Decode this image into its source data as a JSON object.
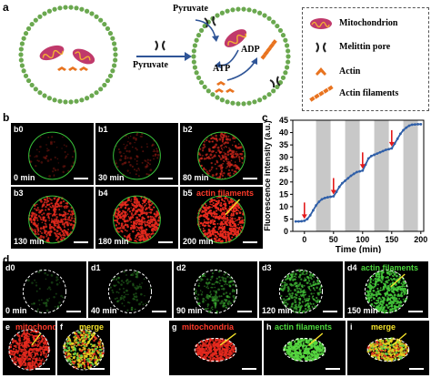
{
  "panel_a": {
    "letter": "a",
    "labels": {
      "pyruvate_top": "Pyruvate",
      "pyruvate_arrow": "Pyruvate",
      "adp": "ADP",
      "atp": "ATP"
    },
    "legend": [
      {
        "icon": "mitochondrion-icon",
        "label": "Mitochondrion"
      },
      {
        "icon": "melittin-pore-icon",
        "label": "Melittin pore"
      },
      {
        "icon": "actin-icon",
        "label": "Actin"
      },
      {
        "icon": "actin-filament-icon",
        "label": "Actin filaments"
      }
    ],
    "colors": {
      "membrane": "#6aa84f",
      "mitochondrion": "#c0396b",
      "actin": "#e8731f",
      "arrow": "#2f5597"
    }
  },
  "panel_b": {
    "letter": "b",
    "tiles": [
      {
        "label": "b0",
        "time": "0 min",
        "intensity": 0.04
      },
      {
        "label": "b1",
        "time": "30 min",
        "intensity": 0.12
      },
      {
        "label": "b2",
        "time": "80 min",
        "intensity": 0.5
      },
      {
        "label": "b3",
        "time": "130 min",
        "intensity": 0.75
      },
      {
        "label": "b4",
        "time": "180 min",
        "intensity": 0.88
      },
      {
        "label": "b5",
        "time": "200 min",
        "intensity": 1.0,
        "annotation": "actin filaments"
      }
    ]
  },
  "panel_c": {
    "letter": "c",
    "chart_data": {
      "type": "line",
      "xlabel": "Time (min)",
      "ylabel": "Fluorescence intensity (a.u.)",
      "xlim": [
        -20,
        205
      ],
      "ylim": [
        0,
        45
      ],
      "xticks": [
        0,
        50,
        100,
        150,
        200
      ],
      "yticks": [
        0,
        5,
        10,
        15,
        20,
        25,
        30,
        35,
        40,
        45
      ],
      "shaded_intervals": [
        [
          20,
          45
        ],
        [
          70,
          95
        ],
        [
          120,
          145
        ],
        [
          170,
          195
        ]
      ],
      "arrows_at": [
        0,
        50,
        100,
        150
      ],
      "series": [
        {
          "x": [
            -15,
            -10,
            -5,
            0,
            5,
            10,
            15,
            20,
            25,
            30,
            35,
            40,
            45,
            50,
            55,
            60,
            65,
            70,
            75,
            80,
            85,
            90,
            95,
            100,
            105,
            110,
            115,
            120,
            125,
            130,
            135,
            140,
            145,
            150,
            155,
            160,
            165,
            170,
            175,
            180,
            185,
            190,
            195,
            200
          ],
          "y": [
            4,
            4,
            4.1,
            4.3,
            5,
            6.5,
            8.5,
            10.5,
            12,
            13,
            13.5,
            13.8,
            14,
            14.2,
            16,
            18,
            19.5,
            20.5,
            21.5,
            22.5,
            23.3,
            24,
            24.3,
            24.6,
            27,
            29.5,
            30.5,
            31,
            31.5,
            32,
            32.5,
            33,
            33.3,
            33.6,
            35.5,
            37.5,
            39.5,
            41,
            42,
            42.8,
            43.2,
            43.3,
            43.4,
            43.4
          ]
        }
      ],
      "colors": {
        "line": "#2f5fa8",
        "shade": "#c8c8c8",
        "arrow": "#e31a1c"
      }
    }
  },
  "panel_d": {
    "letter": "d",
    "tiles": [
      {
        "label": "d0",
        "time": "0 min",
        "intensity": 0.03
      },
      {
        "label": "d1",
        "time": "40 min",
        "intensity": 0.12
      },
      {
        "label": "d2",
        "time": "90 min",
        "intensity": 0.3
      },
      {
        "label": "d3",
        "time": "120 min",
        "intensity": 0.55
      },
      {
        "label": "d4",
        "time": "150 min",
        "intensity": 0.85,
        "annotation": "actin filaments"
      }
    ]
  },
  "panel_e": {
    "letter": "e",
    "annotation": "mitochondria"
  },
  "panel_f": {
    "letter": "f",
    "annotation": "merge"
  },
  "panel_g": {
    "letter": "g",
    "annotation": "mitochondria"
  },
  "panel_h": {
    "letter": "h",
    "annotation": "actin filaments"
  },
  "panel_i": {
    "letter": "i",
    "annotation": "merge"
  }
}
